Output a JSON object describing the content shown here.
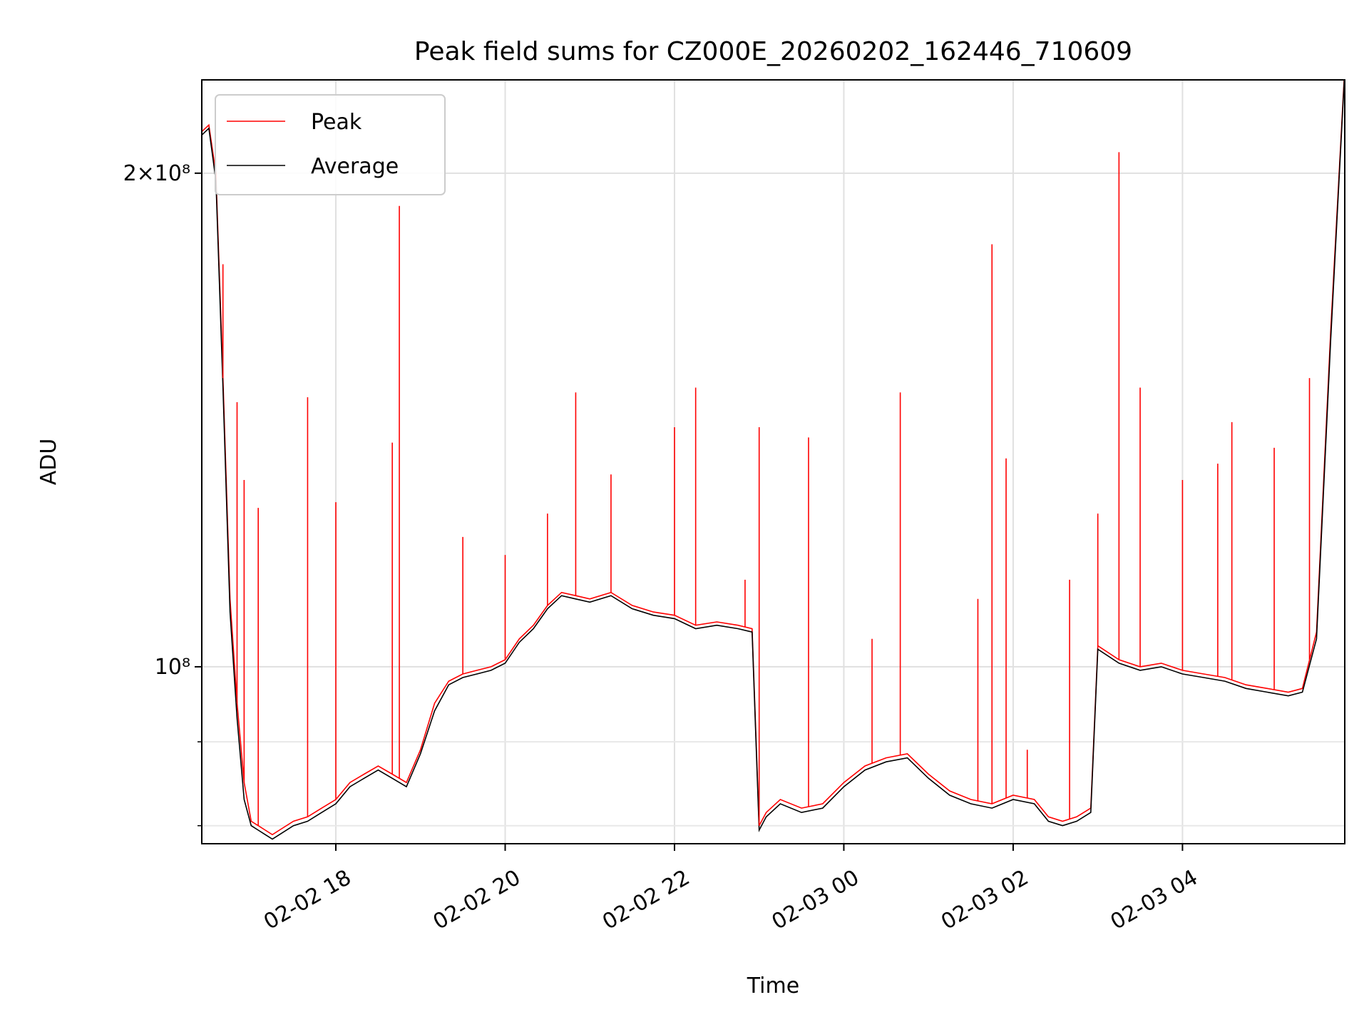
{
  "chart_data": {
    "type": "line",
    "title": "Peak field sums for CZ000E_20260202_162446_710609",
    "xlabel": "Time",
    "ylabel": "ADU",
    "yscale": "log",
    "xlim": [
      "2026-02-02 16:25",
      "2026-02-03 05:55"
    ],
    "ylim": [
      78000000,
      228000000
    ],
    "grid": true,
    "legend": "upper-left",
    "x_ticks": [
      "02-02 18",
      "02-02 20",
      "02-02 22",
      "02-03 00",
      "02-03 02",
      "02-03 04"
    ],
    "y_ticks_major": [
      "2×10⁸",
      "10⁸"
    ],
    "x": [
      "2026-02-02 16:25",
      "2026-02-02 16:30",
      "2026-02-02 16:35",
      "2026-02-02 16:40",
      "2026-02-02 16:45",
      "2026-02-02 16:50",
      "2026-02-02 16:55",
      "2026-02-02 17:00",
      "2026-02-02 17:05",
      "2026-02-02 17:10",
      "2026-02-02 17:15",
      "2026-02-02 17:20",
      "2026-02-02 17:30",
      "2026-02-02 17:40",
      "2026-02-02 17:50",
      "2026-02-02 18:00",
      "2026-02-02 18:10",
      "2026-02-02 18:20",
      "2026-02-02 18:30",
      "2026-02-02 18:40",
      "2026-02-02 18:50",
      "2026-02-02 19:00",
      "2026-02-02 19:10",
      "2026-02-02 19:20",
      "2026-02-02 19:30",
      "2026-02-02 19:40",
      "2026-02-02 19:50",
      "2026-02-02 20:00",
      "2026-02-02 20:10",
      "2026-02-02 20:20",
      "2026-02-02 20:30",
      "2026-02-02 20:40",
      "2026-02-02 20:50",
      "2026-02-02 21:00",
      "2026-02-02 21:15",
      "2026-02-02 21:30",
      "2026-02-02 21:45",
      "2026-02-02 22:00",
      "2026-02-02 22:15",
      "2026-02-02 22:30",
      "2026-02-02 22:45",
      "2026-02-02 22:55",
      "2026-02-02 23:00",
      "2026-02-02 23:05",
      "2026-02-02 23:15",
      "2026-02-02 23:30",
      "2026-02-02 23:45",
      "2026-02-03 00:00",
      "2026-02-03 00:15",
      "2026-02-03 00:30",
      "2026-02-03 00:45",
      "2026-02-03 01:00",
      "2026-02-03 01:15",
      "2026-02-03 01:30",
      "2026-02-03 01:45",
      "2026-02-03 02:00",
      "2026-02-03 02:15",
      "2026-02-03 02:25",
      "2026-02-03 02:35",
      "2026-02-03 02:45",
      "2026-02-03 02:55",
      "2026-02-03 03:00",
      "2026-02-03 03:15",
      "2026-02-03 03:30",
      "2026-02-03 03:45",
      "2026-02-03 04:00",
      "2026-02-03 04:15",
      "2026-02-03 04:30",
      "2026-02-03 04:45",
      "2026-02-03 05:00",
      "2026-02-03 05:15",
      "2026-02-03 05:25",
      "2026-02-03 05:35",
      "2026-02-03 05:45",
      "2026-02-03 05:55"
    ],
    "series": [
      {
        "name": "Peak",
        "color": "#ff0000",
        "values": [
          212000000,
          214000000,
          200000000,
          150000000,
          110000000,
          95000000,
          85000000,
          80500000,
          80000000,
          79500000,
          79000000,
          79500000,
          80500000,
          81000000,
          82000000,
          83000000,
          85000000,
          86000000,
          87000000,
          86000000,
          85000000,
          89000000,
          95000000,
          98000000,
          99000000,
          99500000,
          100000000,
          101000000,
          104000000,
          106000000,
          109000000,
          111000000,
          110500000,
          110000000,
          111000000,
          109000000,
          108000000,
          107500000,
          106000000,
          106500000,
          106000000,
          105500000,
          80000000,
          81500000,
          83000000,
          82000000,
          82500000,
          85000000,
          87000000,
          88000000,
          88500000,
          86000000,
          84000000,
          83000000,
          82500000,
          83500000,
          83000000,
          81000000,
          80500000,
          81000000,
          82000000,
          103000000,
          101000000,
          100000000,
          100500000,
          99500000,
          99000000,
          98500000,
          97500000,
          97000000,
          96500000,
          97000000,
          105000000,
          160000000,
          232000000
        ]
      },
      {
        "name": "Average",
        "color": "#000000",
        "values": [
          211000000,
          213000000,
          198000000,
          148000000,
          108000000,
          93000000,
          83000000,
          80000000,
          79500000,
          79000000,
          78500000,
          79000000,
          80000000,
          80500000,
          81500000,
          82500000,
          84500000,
          85500000,
          86500000,
          85500000,
          84500000,
          88500000,
          94000000,
          97500000,
          98500000,
          99000000,
          99500000,
          100500000,
          103500000,
          105500000,
          108500000,
          110500000,
          110000000,
          109500000,
          110500000,
          108500000,
          107500000,
          107000000,
          105500000,
          106000000,
          105500000,
          105000000,
          79500000,
          81000000,
          82500000,
          81500000,
          82000000,
          84500000,
          86500000,
          87500000,
          88000000,
          85500000,
          83500000,
          82500000,
          82000000,
          83000000,
          82500000,
          80500000,
          80000000,
          80500000,
          81500000,
          102500000,
          100500000,
          99500000,
          100000000,
          99000000,
          98500000,
          98000000,
          97000000,
          96500000,
          96000000,
          96500000,
          104000000,
          158000000,
          231000000
        ]
      }
    ],
    "peak_spikes": [
      {
        "x": "2026-02-02 16:40",
        "y": 176000000
      },
      {
        "x": "2026-02-02 16:50",
        "y": 145000000
      },
      {
        "x": "2026-02-02 16:55",
        "y": 130000000
      },
      {
        "x": "2026-02-02 17:05",
        "y": 125000000
      },
      {
        "x": "2026-02-02 17:40",
        "y": 146000000
      },
      {
        "x": "2026-02-02 18:00",
        "y": 126000000
      },
      {
        "x": "2026-02-02 18:40",
        "y": 137000000
      },
      {
        "x": "2026-02-02 18:45",
        "y": 191000000
      },
      {
        "x": "2026-02-02 19:30",
        "y": 120000000
      },
      {
        "x": "2026-02-02 20:00",
        "y": 117000000
      },
      {
        "x": "2026-02-02 20:30",
        "y": 124000000
      },
      {
        "x": "2026-02-02 20:50",
        "y": 147000000
      },
      {
        "x": "2026-02-02 21:15",
        "y": 131000000
      },
      {
        "x": "2026-02-02 22:00",
        "y": 140000000
      },
      {
        "x": "2026-02-02 22:15",
        "y": 148000000
      },
      {
        "x": "2026-02-02 22:50",
        "y": 113000000
      },
      {
        "x": "2026-02-02 23:00",
        "y": 140000000
      },
      {
        "x": "2026-02-02 23:35",
        "y": 138000000
      },
      {
        "x": "2026-02-03 00:20",
        "y": 104000000
      },
      {
        "x": "2026-02-03 00:40",
        "y": 147000000
      },
      {
        "x": "2026-02-03 01:35",
        "y": 110000000
      },
      {
        "x": "2026-02-03 01:45",
        "y": 181000000
      },
      {
        "x": "2026-02-03 01:55",
        "y": 134000000
      },
      {
        "x": "2026-02-03 02:10",
        "y": 89000000
      },
      {
        "x": "2026-02-03 02:40",
        "y": 113000000
      },
      {
        "x": "2026-02-03 03:00",
        "y": 124000000
      },
      {
        "x": "2026-02-03 03:15",
        "y": 206000000
      },
      {
        "x": "2026-02-03 03:30",
        "y": 148000000
      },
      {
        "x": "2026-02-03 04:00",
        "y": 130000000
      },
      {
        "x": "2026-02-03 04:25",
        "y": 133000000
      },
      {
        "x": "2026-02-03 04:35",
        "y": 141000000
      },
      {
        "x": "2026-02-03 05:05",
        "y": 136000000
      },
      {
        "x": "2026-02-03 05:30",
        "y": 150000000
      }
    ]
  }
}
